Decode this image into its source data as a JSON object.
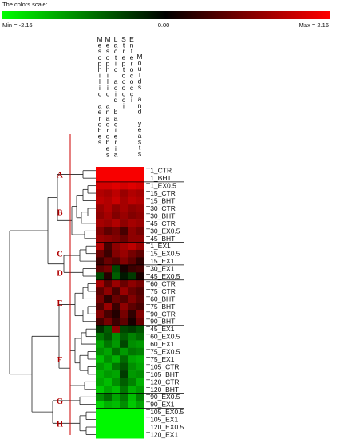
{
  "chart_data": {
    "type": "heatmap",
    "color_scale": {
      "title": "The colors scale:",
      "min_label": "Min = -2.16",
      "mid_label": "0.00",
      "max_label": "Max = 2.16",
      "min": -2.16,
      "mid": 0,
      "max": 2.16,
      "low_color": "#00ff00",
      "mid_color": "#000000",
      "high_color": "#ff0000"
    },
    "columns": [
      "Mesophilic aerobes",
      "Mesophilic anaerobes",
      "Lactic acid bacteria",
      "Streptococci",
      "Enterococci",
      "Moulds and yeasts"
    ],
    "rows": [
      "T1_CTR",
      "T1_BHT",
      "T1_EX0.5",
      "T15_CTR",
      "T15_BHT",
      "T30_CTR",
      "T30_BHT",
      "T45_CTR",
      "T30_EX0.5",
      "T45_BHT",
      "T1_EX1",
      "T15_EX0.5",
      "T15_EX1",
      "T30_EX1",
      "T45_EX0.5",
      "T60_CTR",
      "T75_CTR",
      "T60_BHT",
      "T75_BHT",
      "T90_CTR",
      "T90_BHT",
      "T45_EX1",
      "T60_EX0.5",
      "T60_EX1",
      "T75_EX0.5",
      "T75_EX1",
      "T105_CTR",
      "T105_BHT",
      "T120_CTR",
      "T120_BHT",
      "T90_EX0.5",
      "T90_EX1",
      "T105_EX0.5",
      "T105_EX1",
      "T120_EX0.5",
      "T120_EX1"
    ],
    "values": [
      [
        2.1,
        2.1,
        2.1,
        2.1,
        2.1,
        2.1
      ],
      [
        2.1,
        2.1,
        2.1,
        2.1,
        2.1,
        2.1
      ],
      [
        1.8,
        1.8,
        1.9,
        1.8,
        1.9,
        1.8
      ],
      [
        1.5,
        1.4,
        1.6,
        1.3,
        1.5,
        1.4
      ],
      [
        1.6,
        1.5,
        1.7,
        1.4,
        1.6,
        1.5
      ],
      [
        1.3,
        1.5,
        1.2,
        1.4,
        1.2,
        1.3
      ],
      [
        1.2,
        1.4,
        1.1,
        1.3,
        1.1,
        1.2
      ],
      [
        1.4,
        1.3,
        1.5,
        1.2,
        1.4,
        1.3
      ],
      [
        1.1,
        0.8,
        1.0,
        0.6,
        1.2,
        1.0
      ],
      [
        1.3,
        1.2,
        1.1,
        0.9,
        1.2,
        1.2
      ],
      [
        1.5,
        0.6,
        1.2,
        1.4,
        1.6,
        1.3
      ],
      [
        0.9,
        0.5,
        1.1,
        1.3,
        1.0,
        0.8
      ],
      [
        0.5,
        0.9,
        0.7,
        1.1,
        0.8,
        0.4
      ],
      [
        0.8,
        1.0,
        -0.6,
        0.2,
        0.5,
        0.6
      ],
      [
        -0.6,
        0.3,
        -0.8,
        -0.2,
        -0.5,
        0.2
      ],
      [
        1.4,
        0.8,
        1.3,
        0.9,
        1.2,
        1.0
      ],
      [
        0.8,
        1.2,
        0.6,
        1.3,
        0.9,
        0.7
      ],
      [
        1.0,
        0.4,
        0.9,
        0.7,
        1.1,
        0.8
      ],
      [
        0.7,
        1.3,
        0.5,
        1.2,
        0.8,
        0.6
      ],
      [
        1.1,
        0.6,
        0.3,
        1.0,
        0.4,
        1.1
      ],
      [
        0.6,
        1.0,
        0.5,
        0.8,
        0.2,
        0.9
      ],
      [
        -0.4,
        -0.8,
        1.2,
        -0.6,
        -0.5,
        -0.7
      ],
      [
        -1.0,
        -0.7,
        -1.2,
        -0.8,
        -1.1,
        -0.9
      ],
      [
        -1.4,
        -1.0,
        -1.3,
        -0.6,
        -1.2,
        -1.3
      ],
      [
        -1.2,
        -1.4,
        -0.9,
        -1.3,
        -1.0,
        -1.1
      ],
      [
        -1.6,
        -1.2,
        -1.5,
        -0.9,
        -1.4,
        -1.5
      ],
      [
        -1.3,
        -1.5,
        -1.0,
        -0.7,
        -1.2,
        -1.4
      ],
      [
        -1.5,
        -1.3,
        -1.4,
        -0.5,
        -1.3,
        -1.2
      ],
      [
        -1.4,
        -1.6,
        -1.2,
        -0.8,
        -1.1,
        -1.5
      ],
      [
        -1.7,
        -1.4,
        -1.6,
        -1.0,
        -1.5,
        -1.3
      ],
      [
        -1.2,
        -0.9,
        -1.4,
        -1.0,
        -1.6,
        -1.1
      ],
      [
        -1.8,
        -1.5,
        -1.6,
        -1.2,
        -1.7,
        -1.4
      ],
      [
        -2.1,
        -2.1,
        -2.1,
        -2.1,
        -2.1,
        -2.1
      ],
      [
        -2.1,
        -2.1,
        -2.1,
        -2.1,
        -2.1,
        -2.1
      ],
      [
        -2.1,
        -2.1,
        -2.1,
        -2.1,
        -2.1,
        -2.1
      ],
      [
        -2.1,
        -2.1,
        -2.1,
        -2.1,
        -2.1,
        -2.1
      ]
    ],
    "groups": [
      {
        "label": "A",
        "first_row": 0,
        "last_row": 1
      },
      {
        "label": "B",
        "first_row": 2,
        "last_row": 9
      },
      {
        "label": "C",
        "first_row": 10,
        "last_row": 12
      },
      {
        "label": "D",
        "first_row": 13,
        "last_row": 14
      },
      {
        "label": "E",
        "first_row": 15,
        "last_row": 20
      },
      {
        "label": "F",
        "first_row": 21,
        "last_row": 29
      },
      {
        "label": "G",
        "first_row": 30,
        "last_row": 31
      },
      {
        "label": "H",
        "first_row": 32,
        "last_row": 35
      }
    ],
    "separators_after_rows": [
      1,
      9,
      12,
      14,
      20,
      29,
      31
    ],
    "dendrogram": true
  }
}
